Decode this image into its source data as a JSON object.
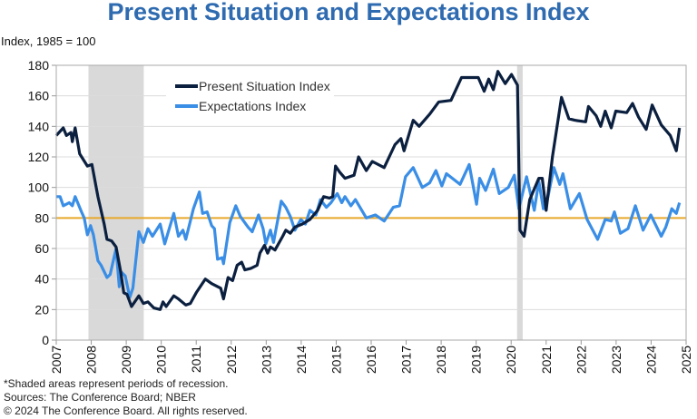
{
  "chart_data": {
    "type": "line",
    "title": "Present Situation and Expectations Index",
    "ylabel": "Index, 1985 = 100",
    "xlabel": "",
    "xlim": [
      2007,
      2025
    ],
    "ylim": [
      0,
      180
    ],
    "xticks": [
      "2007",
      "2008",
      "2009",
      "2010",
      "2011",
      "2012",
      "2013",
      "2014",
      "2015",
      "2016",
      "2017",
      "2018",
      "2019",
      "2020",
      "2021",
      "2022",
      "2023",
      "2024",
      "2025"
    ],
    "yticks": [
      "0",
      "20",
      "40",
      "60",
      "80",
      "100",
      "120",
      "140",
      "160",
      "180"
    ],
    "grid": "horizontal",
    "legend_position": "top-left",
    "reference_line": {
      "y": 80,
      "color": "#E8A92A"
    },
    "recessions": [
      [
        2007.92,
        2009.5
      ],
      [
        2020.17,
        2020.33
      ]
    ],
    "series": [
      {
        "name": "Present Situation Index",
        "color": "#0B1F3F",
        "x": [
          2007.0,
          2007.2,
          2007.29,
          2007.42,
          2007.46,
          2007.54,
          2007.67,
          2007.89,
          2008.02,
          2008.19,
          2008.37,
          2008.45,
          2008.58,
          2008.71,
          2008.84,
          2008.93,
          2009.02,
          2009.15,
          2009.36,
          2009.49,
          2009.62,
          2009.79,
          2009.97,
          2010.05,
          2010.14,
          2010.36,
          2010.49,
          2010.7,
          2010.83,
          2011.0,
          2011.26,
          2011.44,
          2011.7,
          2011.78,
          2011.91,
          2012.04,
          2012.17,
          2012.3,
          2012.39,
          2012.56,
          2012.74,
          2012.82,
          2012.95,
          2013.04,
          2013.12,
          2013.25,
          2013.47,
          2013.56,
          2013.69,
          2013.82,
          2014.03,
          2014.25,
          2014.47,
          2014.64,
          2014.81,
          2014.9,
          2014.98,
          2015.1,
          2015.25,
          2015.51,
          2015.64,
          2015.86,
          2016.03,
          2016.37,
          2016.68,
          2016.85,
          2016.94,
          2017.2,
          2017.37,
          2017.67,
          2017.93,
          2018.28,
          2018.58,
          2019.06,
          2019.23,
          2019.36,
          2019.49,
          2019.62,
          2019.83,
          2020.01,
          2020.18,
          2020.25,
          2020.37,
          2020.53,
          2020.79,
          2020.89,
          2021.0,
          2021.18,
          2021.44,
          2021.65,
          2021.82,
          2022.13,
          2022.21,
          2022.43,
          2022.56,
          2022.69,
          2022.86,
          2022.99,
          2023.3,
          2023.47,
          2023.64,
          2023.86,
          2024.03,
          2024.29,
          2024.55,
          2024.72,
          2024.81
        ],
        "y": [
          134,
          139,
          134,
          136,
          130,
          139,
          122,
          114,
          115,
          94,
          76,
          66,
          65,
          61,
          45,
          31,
          30,
          22,
          29,
          24,
          25,
          21,
          20,
          25,
          22,
          29,
          27,
          23,
          24,
          31,
          40,
          37,
          34,
          27,
          41,
          39,
          49,
          51,
          46,
          47,
          49,
          57,
          62,
          57,
          61,
          59,
          68,
          72,
          70,
          74,
          76,
          79,
          85,
          94,
          93,
          94,
          114,
          110,
          106,
          108,
          120,
          111,
          117,
          113,
          128,
          132,
          124,
          144,
          140,
          148,
          156,
          157,
          172,
          172,
          163,
          171,
          164,
          176,
          168,
          174,
          167,
          72,
          68,
          92,
          106,
          106,
          85,
          120,
          159,
          145,
          144,
          143,
          153,
          147,
          140,
          150,
          139,
          150,
          149,
          155,
          146,
          138,
          154,
          141,
          134,
          124,
          139
        ]
      },
      {
        "name": "Expectations Index",
        "color": "#3A8EE6",
        "x": [
          2007.0,
          2007.11,
          2007.2,
          2007.37,
          2007.46,
          2007.54,
          2007.72,
          2007.8,
          2007.89,
          2007.98,
          2008.06,
          2008.19,
          2008.28,
          2008.45,
          2008.54,
          2008.71,
          2008.8,
          2008.84,
          2008.97,
          2009.1,
          2009.19,
          2009.36,
          2009.49,
          2009.62,
          2009.75,
          2009.97,
          2010.1,
          2010.36,
          2010.49,
          2010.62,
          2010.7,
          2010.92,
          2011.09,
          2011.18,
          2011.31,
          2011.44,
          2011.52,
          2011.61,
          2011.74,
          2011.78,
          2011.96,
          2012.13,
          2012.26,
          2012.48,
          2012.6,
          2012.78,
          2012.91,
          2012.99,
          2013.12,
          2013.21,
          2013.43,
          2013.56,
          2013.69,
          2013.82,
          2013.99,
          2014.12,
          2014.25,
          2014.42,
          2014.55,
          2014.72,
          2014.85,
          2015.03,
          2015.16,
          2015.25,
          2015.42,
          2015.55,
          2015.86,
          2016.12,
          2016.37,
          2016.63,
          2016.81,
          2016.98,
          2017.2,
          2017.46,
          2017.67,
          2017.85,
          2018.02,
          2018.15,
          2018.54,
          2018.8,
          2019.01,
          2019.1,
          2019.27,
          2019.49,
          2019.66,
          2019.92,
          2020.09,
          2020.22,
          2020.44,
          2020.66,
          2020.79,
          2020.92,
          2021.0,
          2021.22,
          2021.39,
          2021.48,
          2021.69,
          2021.95,
          2022.17,
          2022.47,
          2022.69,
          2022.86,
          2022.95,
          2023.12,
          2023.34,
          2023.55,
          2023.77,
          2023.99,
          2024.29,
          2024.42,
          2024.59,
          2024.72,
          2024.81
        ],
        "y": [
          94,
          94,
          88,
          90,
          88,
          94,
          84,
          80,
          69,
          75,
          69,
          52,
          49,
          41,
          43,
          60,
          35,
          45,
          42,
          28,
          34,
          71,
          64,
          73,
          68,
          76,
          63,
          83,
          68,
          72,
          66,
          86,
          97,
          83,
          84,
          75,
          73,
          53,
          54,
          50,
          77,
          88,
          81,
          74,
          71,
          82,
          73,
          63,
          72,
          64,
          91,
          87,
          81,
          72,
          79,
          76,
          85,
          82,
          92,
          87,
          90,
          96,
          90,
          94,
          88,
          92,
          80,
          82,
          78,
          87,
          88,
          107,
          113,
          100,
          103,
          111,
          101,
          109,
          102,
          115,
          89,
          106,
          98,
          112,
          96,
          100,
          108,
          86,
          107,
          85,
          104,
          86,
          88,
          113,
          102,
          109,
          86,
          96,
          79,
          66,
          79,
          78,
          84,
          70,
          73,
          88,
          72,
          82,
          68,
          74,
          86,
          83,
          90
        ]
      }
    ]
  },
  "footnotes": {
    "recession_note": "*Shaded areas represent periods of recession.",
    "sources": "Sources: The Conference Board;  NBER",
    "copyright": "© 2024 The Conference Board. All rights reserved."
  }
}
